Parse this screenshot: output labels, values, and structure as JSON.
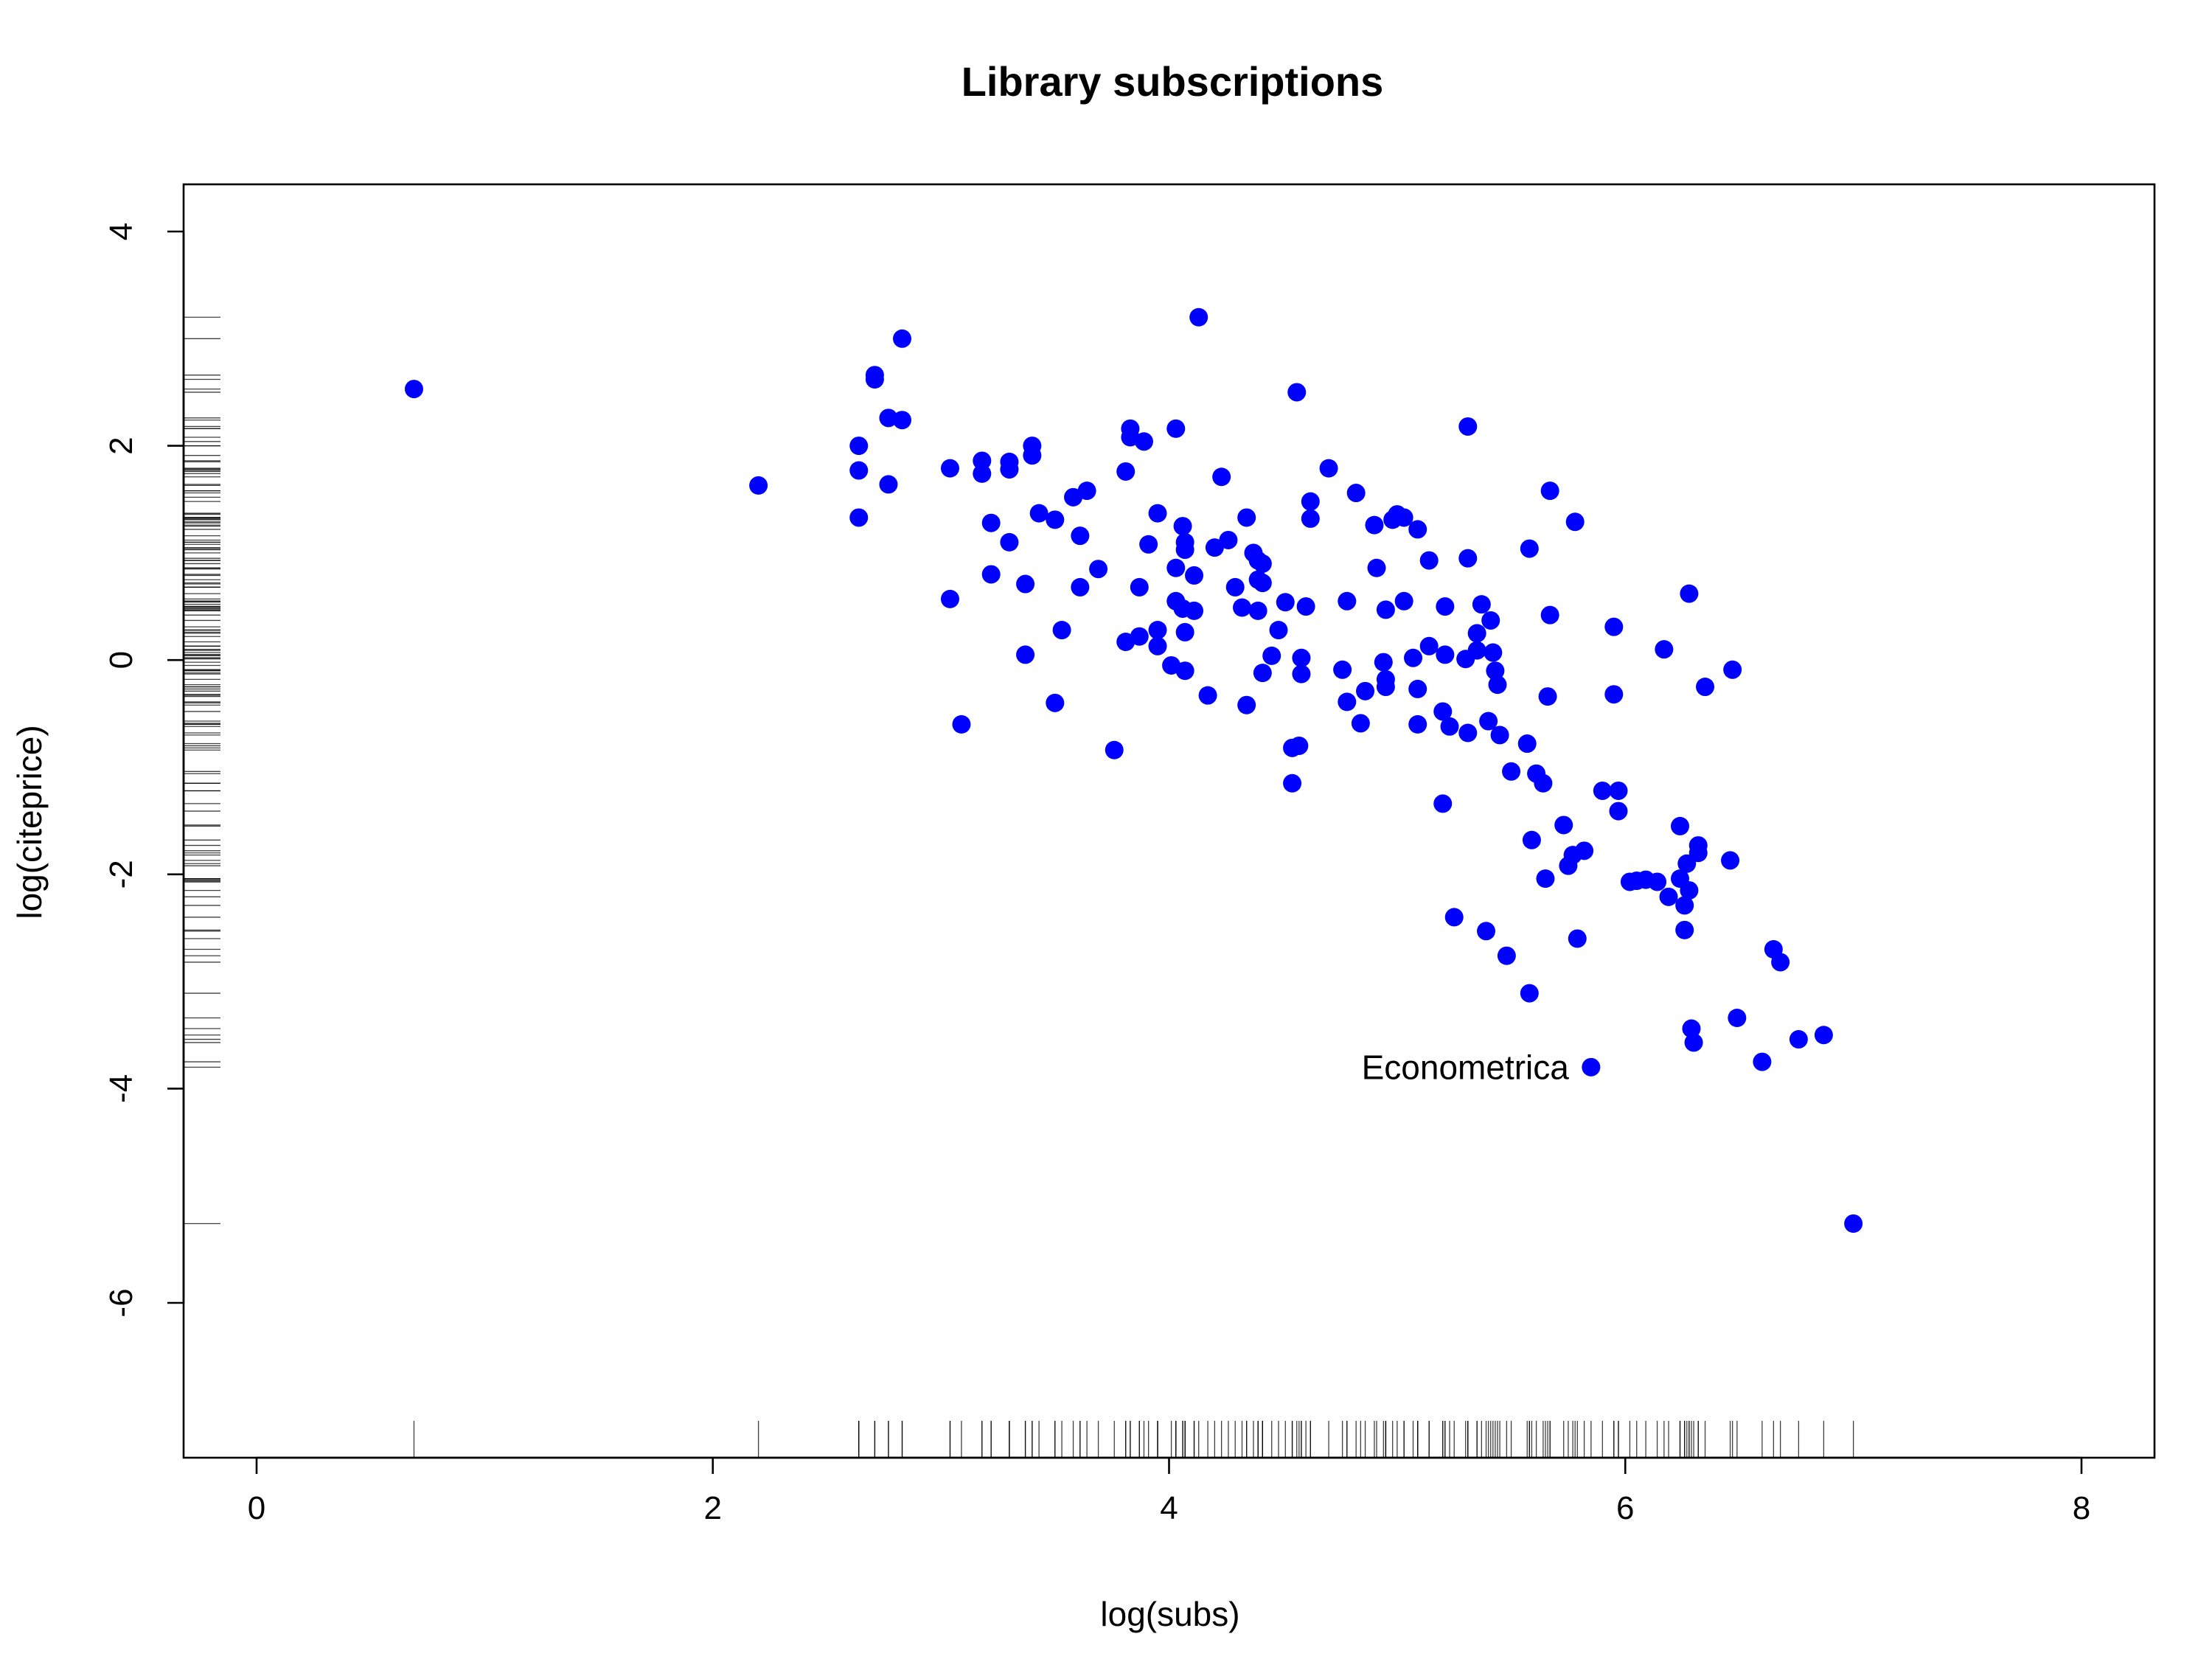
{
  "chart_data": {
    "type": "scatter",
    "title": "Library subscriptions",
    "xlabel": "log(subs)",
    "ylabel": "log(citeprice)",
    "xlim": [
      -0.3,
      8.3
    ],
    "ylim": [
      -7.5,
      4.4
    ],
    "x_ticks": [
      0,
      2,
      4,
      6,
      8
    ],
    "y_ticks": [
      -6,
      -4,
      -2,
      0,
      2,
      4
    ],
    "x_tick_labels": [
      "0",
      "2",
      "4",
      "6",
      "8"
    ],
    "y_tick_labels": [
      "-6",
      "-4",
      "-2",
      "0",
      "2",
      "4"
    ],
    "grid": false,
    "rug": true,
    "point_color": "#0000ff",
    "annotations": [
      {
        "text": "Econometrica",
        "x": 5.85,
        "y": -3.8
      }
    ],
    "points": [
      [
        0.69,
        2.53
      ],
      [
        2.2,
        1.63
      ],
      [
        2.64,
        2.0
      ],
      [
        2.64,
        1.77
      ],
      [
        2.64,
        1.33
      ],
      [
        2.71,
        2.66
      ],
      [
        2.71,
        2.62
      ],
      [
        2.77,
        2.26
      ],
      [
        2.77,
        1.64
      ],
      [
        2.83,
        3.0
      ],
      [
        2.83,
        2.24
      ],
      [
        3.04,
        1.79
      ],
      [
        3.04,
        0.57
      ],
      [
        3.09,
        -0.6
      ],
      [
        3.18,
        1.86
      ],
      [
        3.18,
        1.74
      ],
      [
        3.22,
        1.28
      ],
      [
        3.22,
        0.8
      ],
      [
        3.3,
        1.85
      ],
      [
        3.3,
        1.78
      ],
      [
        3.3,
        1.1
      ],
      [
        3.37,
        0.71
      ],
      [
        3.37,
        0.05
      ],
      [
        3.4,
        2.0
      ],
      [
        3.4,
        1.91
      ],
      [
        3.43,
        1.37
      ],
      [
        3.5,
        1.31
      ],
      [
        3.5,
        -0.4
      ],
      [
        3.53,
        0.28
      ],
      [
        3.58,
        1.52
      ],
      [
        3.61,
        1.16
      ],
      [
        3.61,
        0.68
      ],
      [
        3.64,
        1.58
      ],
      [
        3.69,
        0.85
      ],
      [
        3.76,
        -0.84
      ],
      [
        3.81,
        1.76
      ],
      [
        3.81,
        0.17
      ],
      [
        3.83,
        2.16
      ],
      [
        3.83,
        2.08
      ],
      [
        3.87,
        0.68
      ],
      [
        3.87,
        0.22
      ],
      [
        3.89,
        2.04
      ],
      [
        3.91,
        1.08
      ],
      [
        3.95,
        1.37
      ],
      [
        3.95,
        0.28
      ],
      [
        3.95,
        0.13
      ],
      [
        4.01,
        -0.05
      ],
      [
        4.03,
        2.16
      ],
      [
        4.03,
        0.86
      ],
      [
        4.03,
        0.55
      ],
      [
        4.06,
        1.25
      ],
      [
        4.06,
        0.48
      ],
      [
        4.07,
        1.1
      ],
      [
        4.07,
        1.03
      ],
      [
        4.07,
        0.26
      ],
      [
        4.07,
        -0.1
      ],
      [
        4.11,
        0.79
      ],
      [
        4.11,
        0.46
      ],
      [
        4.13,
        3.2
      ],
      [
        4.17,
        -0.33
      ],
      [
        4.2,
        1.05
      ],
      [
        4.23,
        1.71
      ],
      [
        4.26,
        1.12
      ],
      [
        4.29,
        0.68
      ],
      [
        4.32,
        0.49
      ],
      [
        4.34,
        1.33
      ],
      [
        4.34,
        -0.42
      ],
      [
        4.37,
        1.0
      ],
      [
        4.39,
        0.93
      ],
      [
        4.39,
        0.75
      ],
      [
        4.39,
        0.46
      ],
      [
        4.41,
        0.9
      ],
      [
        4.41,
        0.72
      ],
      [
        4.41,
        -0.12
      ],
      [
        4.45,
        0.04
      ],
      [
        4.48,
        0.28
      ],
      [
        4.51,
        0.54
      ],
      [
        4.54,
        -0.82
      ],
      [
        4.54,
        -1.15
      ],
      [
        4.56,
        2.5
      ],
      [
        4.57,
        -0.8
      ],
      [
        4.58,
        0.02
      ],
      [
        4.58,
        -0.13
      ],
      [
        4.6,
        0.5
      ],
      [
        4.62,
        1.48
      ],
      [
        4.62,
        1.32
      ],
      [
        4.7,
        1.79
      ],
      [
        4.76,
        -0.09
      ],
      [
        4.78,
        0.55
      ],
      [
        4.78,
        -0.39
      ],
      [
        4.82,
        1.56
      ],
      [
        4.84,
        -0.59
      ],
      [
        4.86,
        -0.29
      ],
      [
        4.9,
        1.26
      ],
      [
        4.91,
        0.86
      ],
      [
        4.94,
        -0.02
      ],
      [
        4.95,
        0.47
      ],
      [
        4.95,
        -0.18
      ],
      [
        4.95,
        -0.25
      ],
      [
        4.98,
        1.31
      ],
      [
        5.0,
        1.36
      ],
      [
        5.03,
        1.33
      ],
      [
        5.03,
        0.55
      ],
      [
        5.07,
        0.02
      ],
      [
        5.09,
        1.22
      ],
      [
        5.09,
        -0.27
      ],
      [
        5.09,
        -0.6
      ],
      [
        5.14,
        0.93
      ],
      [
        5.14,
        0.13
      ],
      [
        5.2,
        -0.48
      ],
      [
        5.2,
        -1.34
      ],
      [
        5.21,
        0.5
      ],
      [
        5.21,
        0.05
      ],
      [
        5.23,
        -0.62
      ],
      [
        5.25,
        -2.4
      ],
      [
        5.3,
        0.01
      ],
      [
        5.31,
        2.18
      ],
      [
        5.31,
        0.95
      ],
      [
        5.31,
        -0.68
      ],
      [
        5.35,
        0.25
      ],
      [
        5.35,
        0.09
      ],
      [
        5.37,
        0.52
      ],
      [
        5.39,
        -2.53
      ],
      [
        5.4,
        -0.57
      ],
      [
        5.41,
        0.37
      ],
      [
        5.42,
        0.07
      ],
      [
        5.43,
        -0.1
      ],
      [
        5.44,
        -0.23
      ],
      [
        5.45,
        -0.7
      ],
      [
        5.48,
        -2.76
      ],
      [
        5.5,
        -1.04
      ],
      [
        5.57,
        -0.78
      ],
      [
        5.58,
        1.04
      ],
      [
        5.58,
        -3.11
      ],
      [
        5.59,
        -1.68
      ],
      [
        5.61,
        -1.06
      ],
      [
        5.64,
        -1.15
      ],
      [
        5.65,
        -2.04
      ],
      [
        5.66,
        -0.34
      ],
      [
        5.67,
        1.58
      ],
      [
        5.67,
        0.42
      ],
      [
        5.73,
        -1.54
      ],
      [
        5.75,
        -1.92
      ],
      [
        5.77,
        -1.82
      ],
      [
        5.78,
        1.29
      ],
      [
        5.79,
        -2.6
      ],
      [
        5.82,
        -1.78
      ],
      [
        5.85,
        -3.8
      ],
      [
        5.9,
        -1.22
      ],
      [
        5.95,
        0.31
      ],
      [
        5.95,
        -0.32
      ],
      [
        5.97,
        -1.22
      ],
      [
        5.97,
        -1.41
      ],
      [
        6.02,
        -2.07
      ],
      [
        6.05,
        -2.06
      ],
      [
        6.09,
        -2.05
      ],
      [
        6.14,
        -2.07
      ],
      [
        6.17,
        0.1
      ],
      [
        6.19,
        -2.21
      ],
      [
        6.24,
        -2.04
      ],
      [
        6.24,
        -1.55
      ],
      [
        6.26,
        -2.29
      ],
      [
        6.26,
        -2.52
      ],
      [
        6.27,
        -1.9
      ],
      [
        6.28,
        0.62
      ],
      [
        6.28,
        -2.15
      ],
      [
        6.29,
        -3.44
      ],
      [
        6.3,
        -3.57
      ],
      [
        6.32,
        -1.73
      ],
      [
        6.32,
        -1.8
      ],
      [
        6.35,
        -0.25
      ],
      [
        6.46,
        -1.87
      ],
      [
        6.47,
        -0.09
      ],
      [
        6.49,
        -3.34
      ],
      [
        6.6,
        -3.75
      ],
      [
        6.65,
        -2.7
      ],
      [
        6.68,
        -2.82
      ],
      [
        6.76,
        -3.54
      ],
      [
        6.87,
        -3.5
      ],
      [
        7.0,
        -5.26
      ]
    ]
  }
}
